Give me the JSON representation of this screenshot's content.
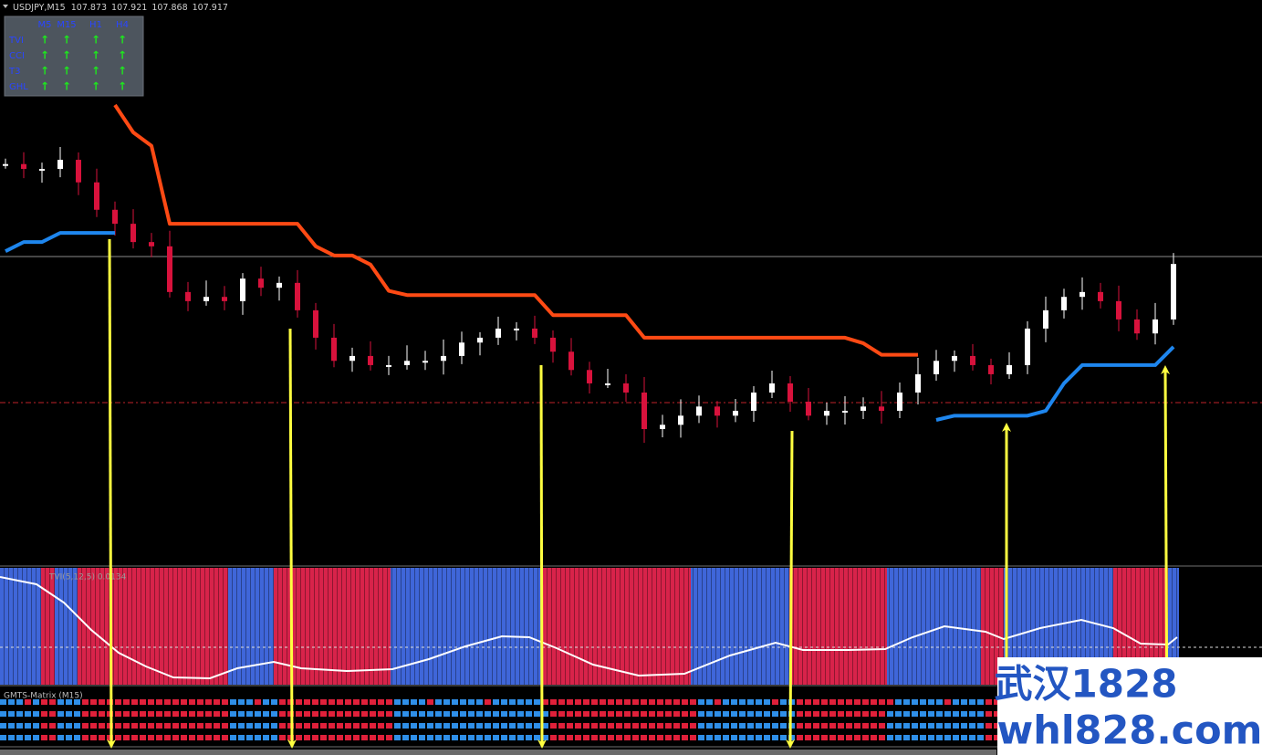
{
  "header": {
    "symbol": "USDJPY,M15",
    "ohlc": [
      107.873,
      107.921,
      107.868,
      107.917
    ]
  },
  "dashboard": {
    "columns": [
      "M5",
      "M15",
      "H1",
      "H4"
    ],
    "rows": [
      "TVI",
      "CCI",
      "T3",
      "GHL"
    ],
    "signals": [
      [
        "↑",
        "↑",
        "↑",
        "↑"
      ],
      [
        "↑",
        "↑",
        "↑",
        "↑"
      ],
      [
        "↑",
        "↑",
        "↑",
        "↑"
      ],
      [
        "↑",
        "↑",
        "↑",
        "↑"
      ]
    ]
  },
  "chart": {
    "closes": [
      108.069,
      108.061,
      108.061,
      108.076,
      108.039,
      107.994,
      107.971,
      107.941,
      107.934,
      107.859,
      107.844,
      107.851,
      107.844,
      107.881,
      107.866,
      107.874,
      107.829,
      107.784,
      107.746,
      107.754,
      107.739,
      107.739,
      107.746,
      107.746,
      107.754,
      107.776,
      107.784,
      107.799,
      107.799,
      107.784,
      107.761,
      107.731,
      107.709,
      107.709,
      107.694,
      107.634,
      107.641,
      107.656,
      107.671,
      107.656,
      107.664,
      107.694,
      107.709,
      107.679,
      107.656,
      107.664,
      107.664,
      107.671,
      107.664,
      107.694,
      107.724,
      107.746,
      107.754,
      107.739,
      107.724,
      107.739,
      107.799,
      107.829,
      107.851,
      107.859,
      107.844,
      107.814,
      107.791,
      107.814,
      107.905
    ],
    "resistance": [
      null,
      null,
      null,
      null,
      null,
      null,
      108.166,
      108.121,
      108.099,
      107.971,
      107.971,
      107.971,
      107.971,
      107.971,
      107.971,
      107.971,
      107.971,
      107.934,
      107.919,
      107.919,
      107.904,
      107.861,
      107.854,
      107.854,
      107.854,
      107.854,
      107.854,
      107.854,
      107.854,
      107.854,
      107.821,
      107.821,
      107.821,
      107.821,
      107.821,
      107.784,
      107.784,
      107.784,
      107.784,
      107.784,
      107.784,
      107.784,
      107.784,
      107.784,
      107.784,
      107.784,
      107.784,
      107.775,
      107.756,
      107.756,
      107.756,
      null,
      null,
      null,
      null,
      null,
      null,
      null,
      null,
      null,
      null,
      null,
      null,
      null,
      null
    ],
    "support": [
      107.926,
      107.941,
      107.941,
      107.956,
      107.956,
      107.956,
      107.956,
      null,
      null,
      null,
      null,
      null,
      null,
      null,
      null,
      null,
      null,
      null,
      null,
      null,
      null,
      null,
      null,
      null,
      null,
      null,
      null,
      null,
      null,
      null,
      null,
      null,
      null,
      null,
      null,
      null,
      null,
      null,
      null,
      null,
      null,
      null,
      null,
      null,
      null,
      null,
      null,
      null,
      null,
      null,
      null,
      107.649,
      107.656,
      107.656,
      107.656,
      107.656,
      107.656,
      107.664,
      107.709,
      107.739,
      107.739,
      107.739,
      107.739,
      107.739,
      107.769
    ]
  },
  "indicator": {
    "label": "TVI(5,12,5) 0.0134"
  },
  "matrix": {
    "label": "GMTS-Matrix (M15)"
  },
  "watermark": {
    "line1": "武汉1828",
    "line2": "whl828.com"
  }
}
